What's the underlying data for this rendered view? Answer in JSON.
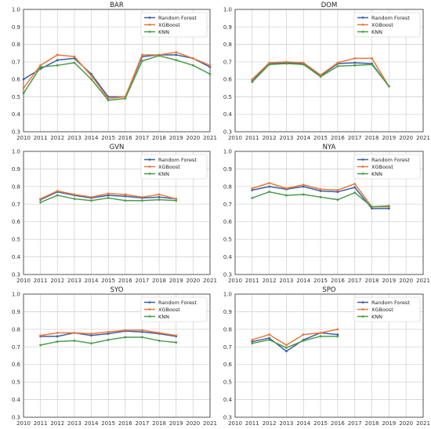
{
  "chart_data": [
    {
      "type": "line",
      "title": "BAR",
      "x": [
        2010,
        2011,
        2012,
        2013,
        2014,
        2015,
        2016,
        2017,
        2018,
        2019,
        2020,
        2021
      ],
      "xlim": [
        2010,
        2021
      ],
      "ylim": [
        0.3,
        1.0
      ],
      "yticks": [
        0.3,
        0.4,
        0.5,
        0.6,
        0.7,
        0.8,
        0.9,
        1.0
      ],
      "grid": true,
      "legend_position": "top-right",
      "series": [
        {
          "name": "Random Forest",
          "color": "#3a5fa8",
          "values": [
            0.6,
            0.66,
            0.71,
            0.72,
            0.63,
            0.5,
            0.5,
            0.73,
            0.74,
            0.74,
            0.72,
            0.67
          ]
        },
        {
          "name": "XGBoost",
          "color": "#e8793a",
          "values": [
            0.55,
            0.68,
            0.74,
            0.73,
            0.62,
            0.49,
            0.5,
            0.74,
            0.74,
            0.755,
            0.72,
            0.68
          ]
        },
        {
          "name": "KNN",
          "color": "#4a9c4a",
          "values": [
            0.52,
            0.67,
            0.68,
            0.695,
            0.6,
            0.48,
            0.49,
            0.705,
            0.735,
            0.71,
            0.68,
            0.63
          ]
        }
      ]
    },
    {
      "type": "line",
      "title": "DOM",
      "x": [
        2010,
        2011,
        2012,
        2013,
        2014,
        2015,
        2016,
        2017,
        2018,
        2019,
        2020,
        2021
      ],
      "xlim": [
        2010,
        2021
      ],
      "ylim": [
        0.3,
        1.0
      ],
      "yticks": [
        0.3,
        0.4,
        0.5,
        0.6,
        0.7,
        0.8,
        0.9,
        1.0
      ],
      "grid": true,
      "legend_position": "top-right",
      "series": [
        {
          "name": "Random Forest",
          "color": "#3a5fa8",
          "values": [
            null,
            0.595,
            0.69,
            0.695,
            0.69,
            0.62,
            0.69,
            0.695,
            0.69,
            0.56,
            null,
            null
          ]
        },
        {
          "name": "XGBoost",
          "color": "#e8793a",
          "values": [
            null,
            0.6,
            0.695,
            0.7,
            0.695,
            0.625,
            0.695,
            0.72,
            0.72,
            0.56,
            null,
            null
          ]
        },
        {
          "name": "KNN",
          "color": "#4a9c4a",
          "values": [
            null,
            0.585,
            0.685,
            0.69,
            0.685,
            0.615,
            0.675,
            0.68,
            0.685,
            0.56,
            null,
            null
          ]
        }
      ]
    },
    {
      "type": "line",
      "title": "GVN",
      "x": [
        2010,
        2011,
        2012,
        2013,
        2014,
        2015,
        2016,
        2017,
        2018,
        2019,
        2020,
        2021
      ],
      "xlim": [
        2010,
        2021
      ],
      "ylim": [
        0.3,
        1.0
      ],
      "yticks": [
        0.3,
        0.4,
        0.5,
        0.6,
        0.7,
        0.8,
        0.9,
        1.0
      ],
      "grid": true,
      "legend_position": "top-right",
      "series": [
        {
          "name": "Random Forest",
          "color": "#3a5fa8",
          "values": [
            null,
            0.725,
            0.77,
            0.75,
            0.735,
            0.75,
            0.745,
            0.735,
            0.74,
            0.73,
            null,
            null
          ]
        },
        {
          "name": "XGBoost",
          "color": "#e8793a",
          "values": [
            null,
            0.73,
            0.775,
            0.755,
            0.74,
            0.76,
            0.755,
            0.74,
            0.755,
            0.73,
            null,
            null
          ]
        },
        {
          "name": "KNN",
          "color": "#4a9c4a",
          "values": [
            null,
            0.71,
            0.75,
            0.73,
            0.72,
            0.735,
            0.72,
            0.72,
            0.725,
            0.72,
            null,
            null
          ]
        }
      ]
    },
    {
      "type": "line",
      "title": "NYA",
      "x": [
        2010,
        2011,
        2012,
        2013,
        2014,
        2015,
        2016,
        2017,
        2018,
        2019,
        2020,
        2021
      ],
      "xlim": [
        2010,
        2021
      ],
      "ylim": [
        0.3,
        1.0
      ],
      "yticks": [
        0.3,
        0.4,
        0.5,
        0.6,
        0.7,
        0.8,
        0.9,
        1.0
      ],
      "grid": true,
      "legend_position": "top-right",
      "series": [
        {
          "name": "Random Forest",
          "color": "#3a5fa8",
          "values": [
            null,
            0.78,
            0.8,
            0.785,
            0.8,
            0.775,
            0.77,
            0.795,
            0.675,
            0.675,
            null,
            null
          ]
        },
        {
          "name": "XGBoost",
          "color": "#e8793a",
          "values": [
            null,
            0.79,
            0.82,
            0.79,
            0.81,
            0.785,
            0.78,
            0.815,
            0.685,
            0.685,
            null,
            null
          ]
        },
        {
          "name": "KNN",
          "color": "#4a9c4a",
          "values": [
            null,
            0.735,
            0.77,
            0.75,
            0.755,
            0.74,
            0.725,
            0.765,
            0.685,
            0.69,
            null,
            null
          ]
        }
      ]
    },
    {
      "type": "line",
      "title": "SYO",
      "x": [
        2010,
        2011,
        2012,
        2013,
        2014,
        2015,
        2016,
        2017,
        2018,
        2019,
        2020,
        2021
      ],
      "xlim": [
        2010,
        2021
      ],
      "ylim": [
        0.3,
        1.0
      ],
      "yticks": [
        0.3,
        0.4,
        0.5,
        0.6,
        0.7,
        0.8,
        0.9,
        1.0
      ],
      "grid": true,
      "legend_position": "top-right",
      "series": [
        {
          "name": "Random Forest",
          "color": "#3a5fa8",
          "values": [
            null,
            0.76,
            0.76,
            0.78,
            0.765,
            0.775,
            0.79,
            0.785,
            0.775,
            0.76,
            null,
            null
          ]
        },
        {
          "name": "XGBoost",
          "color": "#e8793a",
          "values": [
            null,
            0.765,
            0.78,
            0.78,
            0.775,
            0.785,
            0.795,
            0.795,
            0.78,
            0.765,
            null,
            null
          ]
        },
        {
          "name": "KNN",
          "color": "#4a9c4a",
          "values": [
            null,
            0.71,
            0.73,
            0.735,
            0.72,
            0.74,
            0.755,
            0.755,
            0.735,
            0.725,
            null,
            null
          ]
        }
      ]
    },
    {
      "type": "line",
      "title": "SPO",
      "x": [
        2010,
        2011,
        2012,
        2013,
        2014,
        2015,
        2016,
        2017,
        2018,
        2019,
        2020,
        2021
      ],
      "xlim": [
        2010,
        2021
      ],
      "ylim": [
        0.3,
        1.0
      ],
      "yticks": [
        0.3,
        0.4,
        0.5,
        0.6,
        0.7,
        0.8,
        0.9,
        1.0
      ],
      "grid": true,
      "legend_position": "top-right",
      "series": [
        {
          "name": "Random Forest",
          "color": "#3a5fa8",
          "values": [
            null,
            0.73,
            0.75,
            0.675,
            0.74,
            0.78,
            0.77,
            null,
            null,
            null,
            null,
            null
          ]
        },
        {
          "name": "XGBoost",
          "color": "#e8793a",
          "values": [
            null,
            0.74,
            0.77,
            0.71,
            0.77,
            0.78,
            0.8,
            null,
            null,
            null,
            null,
            null
          ]
        },
        {
          "name": "KNN",
          "color": "#4a9c4a",
          "values": [
            null,
            0.72,
            0.74,
            0.695,
            0.735,
            0.76,
            0.76,
            null,
            null,
            null,
            null,
            null
          ]
        }
      ]
    }
  ]
}
